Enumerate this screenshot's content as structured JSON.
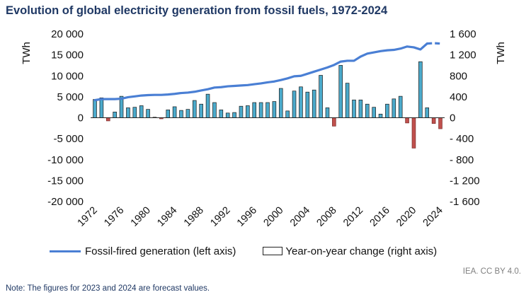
{
  "title": "Evolution of global electricity generation from fossil fuels, 1972-2024",
  "source": "IEA. CC BY 4.0.",
  "note": "Note: The figures for 2023 and 2024 are forecast values.",
  "chart_data": {
    "type": "bar+line",
    "title": "Evolution of global electricity generation from fossil fuels, 1972-2024",
    "ylabel_left": "TWh",
    "ylabel_right": "TWh",
    "ylim_left": [
      -20000,
      20000
    ],
    "ylim_right": [
      -1600,
      1600
    ],
    "yticks_left": [
      "20 000",
      "15 000",
      "10 000",
      "5 000",
      "0",
      "-5 000",
      "-10 000",
      "-15 000",
      "-20 000"
    ],
    "yticks_right": [
      "1 600",
      "1 200",
      "800",
      "400",
      "0",
      "- 400",
      "- 800",
      "-1 200",
      "-1 600"
    ],
    "xticks": [
      "1972",
      "1976",
      "1980",
      "1984",
      "1988",
      "1992",
      "1996",
      "2000",
      "2004",
      "2008",
      "2012",
      "2016",
      "2020",
      "2024"
    ],
    "years": [
      1972,
      1973,
      1974,
      1975,
      1976,
      1977,
      1978,
      1979,
      1980,
      1981,
      1982,
      1983,
      1984,
      1985,
      1986,
      1987,
      1988,
      1989,
      1990,
      1991,
      1992,
      1993,
      1994,
      1995,
      1996,
      1997,
      1998,
      1999,
      2000,
      2001,
      2002,
      2003,
      2004,
      2005,
      2006,
      2007,
      2008,
      2009,
      2010,
      2011,
      2012,
      2013,
      2014,
      2015,
      2016,
      2017,
      2018,
      2019,
      2020,
      2021,
      2022,
      2023,
      2024
    ],
    "series": [
      {
        "name": "Fossil-fired generation (left axis)",
        "type": "line",
        "axis": "left",
        "color": "#4A7FD4",
        "forecast_from": 2022,
        "values": [
          4200,
          4450,
          4450,
          4450,
          4550,
          4900,
          5100,
          5300,
          5400,
          5450,
          5450,
          5550,
          5700,
          5900,
          6000,
          6200,
          6500,
          6800,
          7200,
          7300,
          7500,
          7600,
          7700,
          7800,
          8000,
          8200,
          8450,
          8650,
          9000,
          9400,
          9900,
          10000,
          10500,
          11000,
          11500,
          12000,
          12600,
          13400,
          13600,
          13600,
          14600,
          15300,
          15600,
          15900,
          16100,
          16200,
          16500,
          17000,
          16800,
          16300,
          17700,
          17800,
          17700
        ]
      },
      {
        "name": "Year-on-year change (right axis)",
        "type": "bar",
        "axis": "right",
        "color_positive": "#4BAACB",
        "color_negative": "#C0504D",
        "values": [
          350,
          380,
          -60,
          110,
          410,
          190,
          200,
          230,
          160,
          10,
          -20,
          150,
          210,
          140,
          160,
          330,
          260,
          450,
          290,
          150,
          90,
          100,
          220,
          230,
          290,
          290,
          290,
          310,
          560,
          130,
          510,
          590,
          490,
          530,
          810,
          190,
          -160,
          1000,
          660,
          340,
          340,
          260,
          200,
          70,
          260,
          360,
          410,
          -100,
          -580,
          1070,
          190,
          -110,
          -210
        ]
      }
    ],
    "legend": "bottom",
    "grid": false
  }
}
